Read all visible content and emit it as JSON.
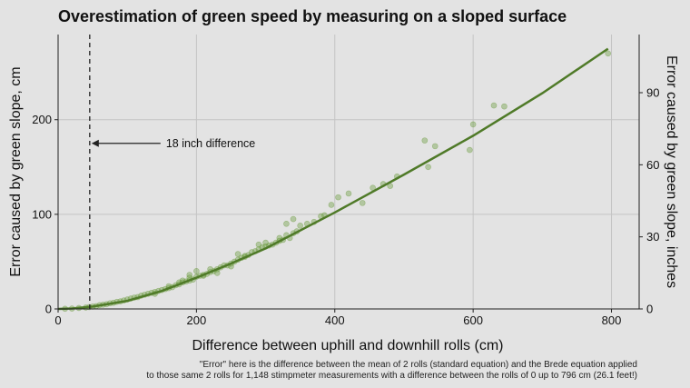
{
  "chart_data": {
    "type": "scatter",
    "title": "Overestimation of green speed by measuring on a sloped surface",
    "xlabel": "Difference between uphill and downhill rolls (cm)",
    "ylabel": "Error caused by green slope, cm",
    "y2label": "Error caused by green slope, inches",
    "xlim": [
      0,
      840
    ],
    "ylim": [
      0,
      290
    ],
    "y2lim_inches": [
      0,
      114.2
    ],
    "x_ticks": [
      0,
      200,
      400,
      600,
      800
    ],
    "y_ticks": [
      0,
      100,
      200
    ],
    "y2_ticks": [
      0,
      30,
      60,
      90
    ],
    "grid": true,
    "colors": {
      "points": "#6a9a3c",
      "line": "#4f7a28",
      "background": "#e3e3e3",
      "grid": "#c4c4c4"
    },
    "vline": {
      "x": 45.7,
      "label": "18 inch difference",
      "label_y": 175
    },
    "fit_line": {
      "x": [
        0,
        20,
        50,
        100,
        150,
        200,
        250,
        300,
        400,
        500,
        600,
        700,
        795
      ],
      "y": [
        0,
        0.5,
        2.5,
        8.5,
        19,
        33,
        48,
        64,
        102,
        142,
        183,
        228,
        275
      ]
    },
    "points": {
      "x": [
        10,
        20,
        30,
        40,
        45,
        50,
        55,
        60,
        65,
        70,
        75,
        80,
        85,
        90,
        95,
        100,
        105,
        110,
        115,
        120,
        125,
        130,
        135,
        140,
        145,
        150,
        155,
        160,
        165,
        170,
        175,
        180,
        185,
        190,
        195,
        200,
        205,
        210,
        215,
        220,
        225,
        230,
        235,
        240,
        245,
        250,
        255,
        260,
        265,
        270,
        275,
        280,
        285,
        290,
        295,
        300,
        305,
        310,
        315,
        320,
        325,
        330,
        335,
        340,
        345,
        350,
        360,
        370,
        380,
        385,
        395,
        405,
        420,
        440,
        455,
        470,
        480,
        490,
        530,
        535,
        545,
        595,
        600,
        630,
        645,
        795,
        160,
        175,
        190,
        210,
        230,
        250,
        270,
        300,
        320,
        340,
        190,
        200,
        140,
        180,
        220,
        260,
        330,
        290
      ],
      "y": [
        0.2,
        0.4,
        1,
        1.5,
        2,
        2.5,
        3,
        4,
        4.5,
        5,
        6,
        6.5,
        7.5,
        8,
        9,
        10,
        11,
        12,
        12.5,
        14,
        15,
        16,
        17,
        18,
        19,
        20,
        21,
        22,
        23,
        25,
        26,
        28,
        29,
        30,
        31,
        34,
        35,
        36,
        37,
        39,
        40,
        42,
        44,
        46,
        46,
        48,
        50,
        52,
        54,
        56,
        57,
        60,
        61,
        63,
        65,
        66,
        67,
        68,
        70,
        72,
        73,
        78,
        75,
        80,
        82,
        88,
        90,
        92,
        98,
        99,
        110,
        118,
        122,
        112,
        128,
        132,
        130,
        140,
        178,
        150,
        172,
        168,
        195,
        215,
        214,
        270,
        24,
        28,
        33,
        35,
        38,
        45,
        55,
        70,
        75,
        95,
        36,
        40,
        16,
        30,
        42,
        58,
        90,
        68
      ]
    },
    "caption_lines": [
      "\"Error\" here is the difference between the mean of 2 rolls (standard equation) and the Brede equation applied",
      "to those same 2 rolls for 1,148 stimpmeter measurements with a difference between the rolls of 0 up to 796 cm (26.1 feet!)"
    ]
  }
}
